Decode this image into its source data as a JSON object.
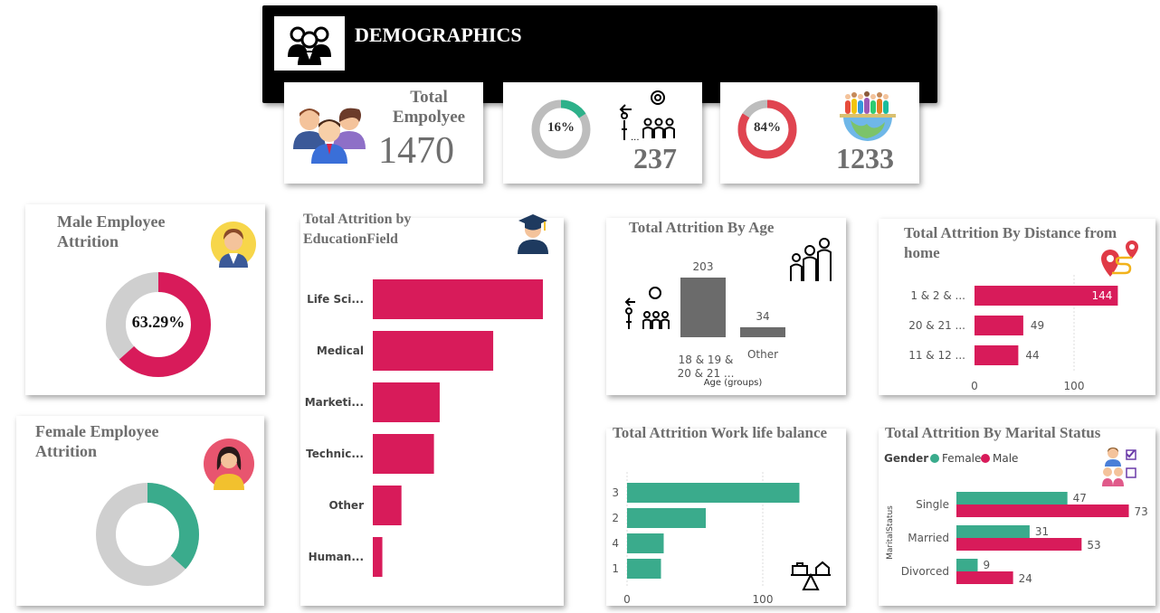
{
  "header": {
    "title": "DEMOGRAPHICS",
    "icon": "people-group-icon"
  },
  "kpis": {
    "total": {
      "label": "Total Empolyee",
      "value": "1470"
    },
    "attrition": {
      "percent_label": "16%",
      "percent": 16,
      "value": "237",
      "color": "#2db18a"
    },
    "retained": {
      "percent_label": "84%",
      "percent": 84,
      "value": "1233",
      "color": "#e04450"
    }
  },
  "male": {
    "title": "Male Employee Attrition",
    "percent_label": "63.29%",
    "percent": 63.29,
    "color": "#d81b5a"
  },
  "female": {
    "title": "Female Employee Attrition",
    "percent": 36.71,
    "color": "#3aab8c"
  },
  "education": {
    "title": "Total Attrition by EducationField",
    "categories": [
      "Life Sci...",
      "Medical",
      "Marketi...",
      "Technic...",
      "Other",
      "Human..."
    ]
  },
  "age": {
    "title": "Total Attrition By Age",
    "xlabel": "Age (groups)",
    "cat1_line1": "18 & 19 &",
    "cat1_line2": "20 & 21 ...",
    "cat2": "Other",
    "label1": "203",
    "label2": "34"
  },
  "distance": {
    "title": "Total Attrition By Distance from home",
    "categories": [
      "1 & 2 & ...",
      "20 & 21 ...",
      "11 & 12 ..."
    ],
    "labels": [
      "144",
      "49",
      "44"
    ],
    "ticks": [
      "0",
      "100"
    ]
  },
  "worklife": {
    "title": "Total Attrition Work life balance",
    "categories": [
      "3",
      "2",
      "4",
      "1"
    ],
    "ticks": [
      "0",
      "100"
    ]
  },
  "marital": {
    "title": "Total Attrition By Marital Status",
    "legend_title": "Gender",
    "legend_female": "Female",
    "legend_male": "Male",
    "axis_label": "MaritalStatus",
    "categories": [
      "Single",
      "Married",
      "Divorced"
    ],
    "female_labels": [
      "47",
      "31",
      "9"
    ],
    "male_labels": [
      "73",
      "53",
      "24"
    ]
  },
  "chart_data": [
    {
      "type": "bar",
      "title": "Total Attrition by EducationField",
      "categories": [
        "Life Sci...",
        "Medical",
        "Marketi...",
        "Technic...",
        "Other",
        "Human..."
      ],
      "values": [
        89,
        63,
        35,
        32,
        15,
        5
      ]
    },
    {
      "type": "bar",
      "title": "Total Attrition By Age",
      "xlabel": "Age (groups)",
      "categories": [
        "18 & 19 & 20 & 21 ...",
        "Other"
      ],
      "values": [
        203,
        34
      ]
    },
    {
      "type": "bar",
      "title": "Total Attrition By Distance from home",
      "categories": [
        "1 & 2 & ...",
        "20 & 21 ...",
        "11 & 12 ..."
      ],
      "values": [
        144,
        49,
        44
      ]
    },
    {
      "type": "bar",
      "title": "Total Attrition Work life balance",
      "categories": [
        "3",
        "2",
        "4",
        "1"
      ],
      "values": [
        127,
        58,
        27,
        25
      ]
    },
    {
      "type": "bar",
      "title": "Total Attrition By Marital Status",
      "categories": [
        "Single",
        "Married",
        "Divorced"
      ],
      "series": [
        {
          "name": "Female",
          "values": [
            47,
            31,
            9
          ]
        },
        {
          "name": "Male",
          "values": [
            73,
            53,
            24
          ]
        }
      ]
    }
  ]
}
